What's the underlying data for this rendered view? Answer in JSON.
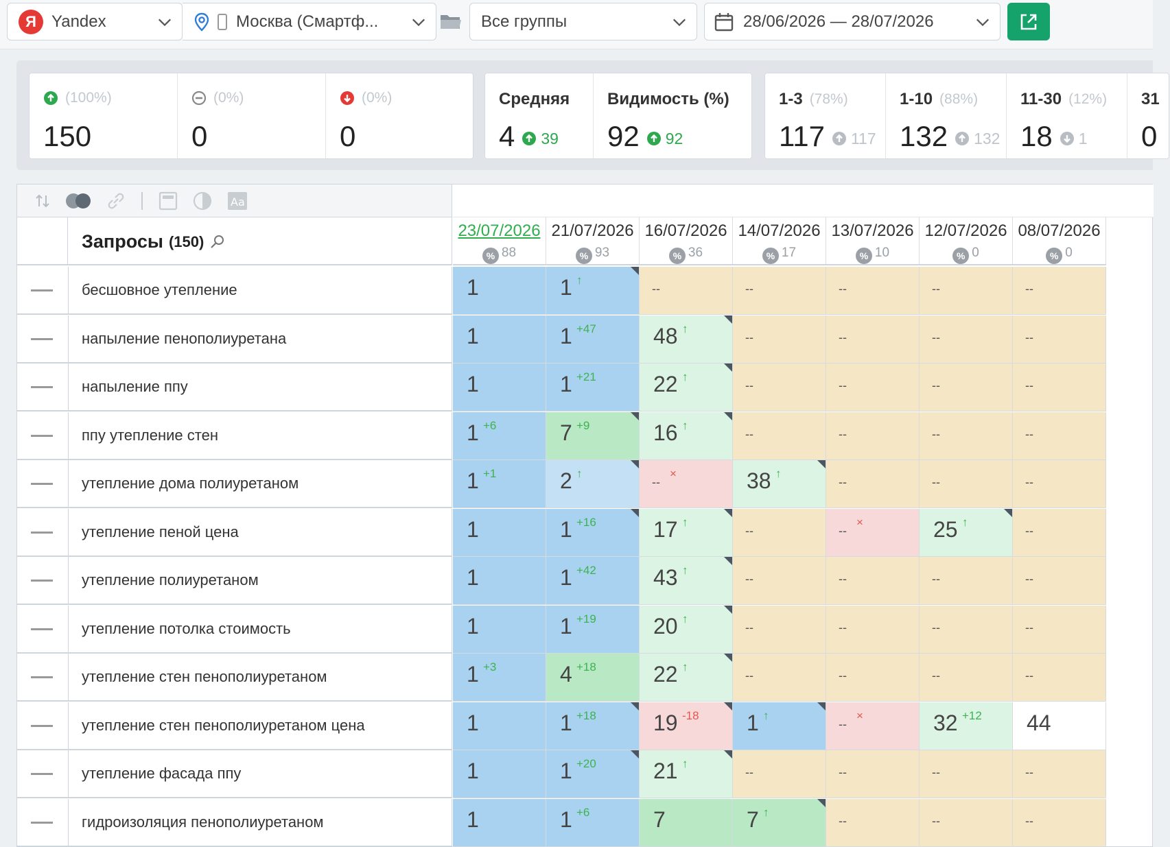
{
  "toolbar": {
    "engine_logo": "Я",
    "engine": "Yandex",
    "region": "Москва (Смартф...",
    "group": "Все группы",
    "period": "28/06/2026 — 28/07/2026"
  },
  "stats": {
    "up": {
      "pct": "(100%)",
      "value": "150"
    },
    "same": {
      "pct": "(0%)",
      "value": "0"
    },
    "down": {
      "pct": "(0%)",
      "value": "0"
    },
    "avg": {
      "label": "Средняя",
      "value": "4",
      "delta": "39"
    },
    "visibility": {
      "label": "Видимость (%)",
      "value": "92",
      "delta": "92"
    },
    "top3": {
      "label": "1-3",
      "pct": "(78%)",
      "value": "117",
      "delta": "117"
    },
    "top10": {
      "label": "1-10",
      "pct": "(88%)",
      "value": "132",
      "delta": "132"
    },
    "top30": {
      "label": "11-30",
      "pct": "(12%)",
      "value": "18",
      "delta": "1"
    },
    "cut_label": "31",
    "cut_value": "0"
  },
  "table": {
    "title": "Запросы",
    "count": "(150)",
    "pct_symbol": "%",
    "dates": [
      {
        "date": "23/07/2026",
        "pct": "88"
      },
      {
        "date": "21/07/2026",
        "pct": "93"
      },
      {
        "date": "16/07/2026",
        "pct": "36"
      },
      {
        "date": "14/07/2026",
        "pct": "17"
      },
      {
        "date": "13/07/2026",
        "pct": "10"
      },
      {
        "date": "12/07/2026",
        "pct": "0"
      },
      {
        "date": "08/07/2026",
        "pct": "0"
      }
    ],
    "rows": [
      {
        "query": "бесшовное утепление",
        "cells": [
          {
            "v": "1",
            "bg": "blue"
          },
          {
            "v": "1",
            "s": "↑",
            "t": "up",
            "bg": "blue",
            "c": 1
          },
          {
            "v": "--",
            "bg": "sand"
          },
          {
            "v": "--",
            "bg": "sand"
          },
          {
            "v": "--",
            "bg": "sand"
          },
          {
            "v": "--",
            "bg": "sand"
          },
          {
            "v": "--",
            "bg": "sand"
          }
        ]
      },
      {
        "query": "напыление пенополиуретана",
        "cells": [
          {
            "v": "1",
            "bg": "blue"
          },
          {
            "v": "1",
            "s": "+47",
            "t": "up",
            "bg": "blue"
          },
          {
            "v": "48",
            "s": "↑",
            "t": "up",
            "bg": "lightgreen",
            "c": 1
          },
          {
            "v": "--",
            "bg": "sand"
          },
          {
            "v": "--",
            "bg": "sand"
          },
          {
            "v": "--",
            "bg": "sand"
          },
          {
            "v": "--",
            "bg": "sand"
          }
        ]
      },
      {
        "query": "напыление ппу",
        "cells": [
          {
            "v": "1",
            "bg": "blue"
          },
          {
            "v": "1",
            "s": "+21",
            "t": "up",
            "bg": "blue"
          },
          {
            "v": "22",
            "s": "↑",
            "t": "up",
            "bg": "lightgreen",
            "c": 1
          },
          {
            "v": "--",
            "bg": "sand"
          },
          {
            "v": "--",
            "bg": "sand"
          },
          {
            "v": "--",
            "bg": "sand"
          },
          {
            "v": "--",
            "bg": "sand"
          }
        ]
      },
      {
        "query": "ппу утепление стен",
        "cells": [
          {
            "v": "1",
            "s": "+6",
            "t": "up",
            "bg": "blue"
          },
          {
            "v": "7",
            "s": "+9",
            "t": "up",
            "bg": "green",
            "c": 1
          },
          {
            "v": "16",
            "s": "↑",
            "t": "up",
            "bg": "lightgreen",
            "c": 1
          },
          {
            "v": "--",
            "bg": "sand"
          },
          {
            "v": "--",
            "bg": "sand"
          },
          {
            "v": "--",
            "bg": "sand"
          },
          {
            "v": "--",
            "bg": "sand"
          }
        ]
      },
      {
        "query": "утепление дома полиуретаном",
        "cells": [
          {
            "v": "1",
            "s": "+1",
            "t": "up",
            "bg": "blue"
          },
          {
            "v": "2",
            "s": "↑",
            "t": "up",
            "bg": "lightblue",
            "c": 1
          },
          {
            "v": "--",
            "s": "×",
            "t": "dn",
            "bg": "pink"
          },
          {
            "v": "38",
            "s": "↑",
            "t": "up",
            "bg": "lightgreen",
            "c": 1
          },
          {
            "v": "--",
            "bg": "sand"
          },
          {
            "v": "--",
            "bg": "sand"
          },
          {
            "v": "--",
            "bg": "sand"
          }
        ]
      },
      {
        "query": "утепление пеной цена",
        "cells": [
          {
            "v": "1",
            "bg": "blue"
          },
          {
            "v": "1",
            "s": "+16",
            "t": "up",
            "bg": "blue",
            "c": 1
          },
          {
            "v": "17",
            "s": "↑",
            "t": "up",
            "bg": "lightgreen",
            "c": 1
          },
          {
            "v": "--",
            "bg": "sand"
          },
          {
            "v": "--",
            "s": "×",
            "t": "dn",
            "bg": "pink"
          },
          {
            "v": "25",
            "s": "↑",
            "t": "up",
            "bg": "lightgreen",
            "c": 1
          },
          {
            "v": "--",
            "bg": "sand"
          }
        ]
      },
      {
        "query": "утепление полиуретаном",
        "cells": [
          {
            "v": "1",
            "bg": "blue"
          },
          {
            "v": "1",
            "s": "+42",
            "t": "up",
            "bg": "blue"
          },
          {
            "v": "43",
            "s": "↑",
            "t": "up",
            "bg": "lightgreen",
            "c": 1
          },
          {
            "v": "--",
            "bg": "sand"
          },
          {
            "v": "--",
            "bg": "sand"
          },
          {
            "v": "--",
            "bg": "sand"
          },
          {
            "v": "--",
            "bg": "sand"
          }
        ]
      },
      {
        "query": "утепление потолка стоимость",
        "cells": [
          {
            "v": "1",
            "bg": "blue"
          },
          {
            "v": "1",
            "s": "+19",
            "t": "up",
            "bg": "blue"
          },
          {
            "v": "20",
            "s": "↑",
            "t": "up",
            "bg": "lightgreen",
            "c": 1
          },
          {
            "v": "--",
            "bg": "sand"
          },
          {
            "v": "--",
            "bg": "sand"
          },
          {
            "v": "--",
            "bg": "sand"
          },
          {
            "v": "--",
            "bg": "sand"
          }
        ]
      },
      {
        "query": "утепление стен пенополиуретаном",
        "cells": [
          {
            "v": "1",
            "s": "+3",
            "t": "up",
            "bg": "blue"
          },
          {
            "v": "4",
            "s": "+18",
            "t": "up",
            "bg": "green"
          },
          {
            "v": "22",
            "s": "↑",
            "t": "up",
            "bg": "lightgreen",
            "c": 1
          },
          {
            "v": "--",
            "bg": "sand"
          },
          {
            "v": "--",
            "bg": "sand"
          },
          {
            "v": "--",
            "bg": "sand"
          },
          {
            "v": "--",
            "bg": "sand"
          }
        ]
      },
      {
        "query": "утепление стен пенополиуретаном цена",
        "cells": [
          {
            "v": "1",
            "bg": "blue"
          },
          {
            "v": "1",
            "s": "+18",
            "t": "up",
            "bg": "blue",
            "c": 1
          },
          {
            "v": "19",
            "s": "-18",
            "t": "dn",
            "bg": "pink",
            "c": 1
          },
          {
            "v": "1",
            "s": "↑",
            "t": "up",
            "bg": "blue",
            "c": 1
          },
          {
            "v": "--",
            "s": "×",
            "t": "dn",
            "bg": "pink"
          },
          {
            "v": "32",
            "s": "+12",
            "t": "up",
            "bg": "lightgreen"
          },
          {
            "v": "44",
            "bg": "white"
          }
        ]
      },
      {
        "query": "утепление фасада ппу",
        "cells": [
          {
            "v": "1",
            "bg": "blue"
          },
          {
            "v": "1",
            "s": "+20",
            "t": "up",
            "bg": "blue",
            "c": 1
          },
          {
            "v": "21",
            "s": "↑",
            "t": "up",
            "bg": "lightgreen",
            "c": 1
          },
          {
            "v": "--",
            "bg": "sand"
          },
          {
            "v": "--",
            "bg": "sand"
          },
          {
            "v": "--",
            "bg": "sand"
          },
          {
            "v": "--",
            "bg": "sand"
          }
        ]
      },
      {
        "query": "гидроизоляция пенополиуретаном",
        "cells": [
          {
            "v": "1",
            "bg": "blue"
          },
          {
            "v": "1",
            "s": "+6",
            "t": "up",
            "bg": "blue"
          },
          {
            "v": "7",
            "bg": "green"
          },
          {
            "v": "7",
            "s": "↑",
            "t": "up",
            "bg": "green",
            "c": 1
          },
          {
            "v": "--",
            "bg": "sand"
          },
          {
            "v": "--",
            "bg": "sand"
          },
          {
            "v": "--",
            "bg": "sand"
          }
        ]
      }
    ]
  }
}
